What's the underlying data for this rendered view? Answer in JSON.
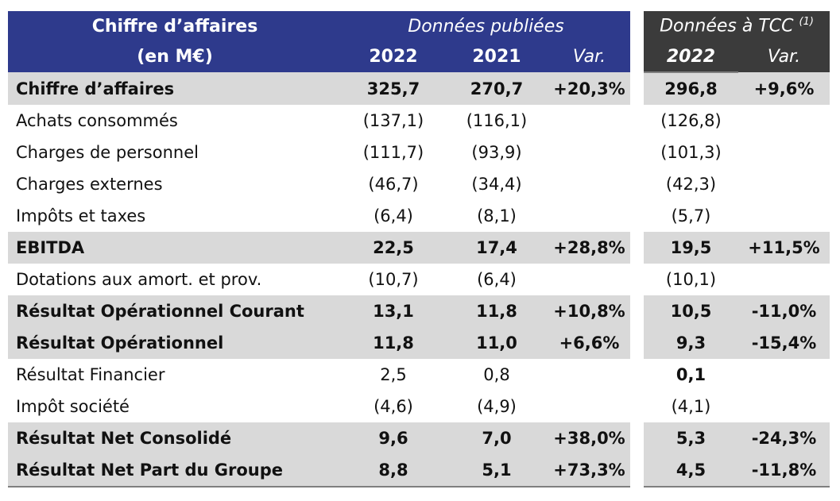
{
  "header": {
    "title_line1": "Chiffre d’affaires",
    "title_line2": "(en M€)",
    "published_group": "Données publiées",
    "tcc_group": "Données à TCC",
    "tcc_note": "(1)",
    "col_2022": "2022",
    "col_2021": "2021",
    "col_var": "Var.",
    "col_tcc_2022": "2022",
    "col_tcc_var": "Var."
  },
  "rows": [
    {
      "label": "Chiffre d’affaires",
      "y2022": "325,7",
      "y2021": "270,7",
      "var": "+20,3%",
      "tcc2022": "296,8",
      "tccvar": "+9,6%"
    },
    {
      "label": "Achats consommés",
      "y2022": "(137,1)",
      "y2021": "(116,1)",
      "var": "",
      "tcc2022": "(126,8)",
      "tccvar": ""
    },
    {
      "label": "Charges de personnel",
      "y2022": "(111,7)",
      "y2021": "(93,9)",
      "var": "",
      "tcc2022": "(101,3)",
      "tccvar": ""
    },
    {
      "label": "Charges externes",
      "y2022": "(46,7)",
      "y2021": "(34,4)",
      "var": "",
      "tcc2022": "(42,3)",
      "tccvar": ""
    },
    {
      "label": "Impôts et taxes",
      "y2022": "(6,4)",
      "y2021": "(8,1)",
      "var": "",
      "tcc2022": "(5,7)",
      "tccvar": ""
    },
    {
      "label": "EBITDA",
      "y2022": "22,5",
      "y2021": "17,4",
      "var": "+28,8%",
      "tcc2022": "19,5",
      "tccvar": "+11,5%"
    },
    {
      "label": "Dotations aux amort. et prov.",
      "y2022": "(10,7)",
      "y2021": "(6,4)",
      "var": "",
      "tcc2022": "(10,1)",
      "tccvar": ""
    },
    {
      "label": "Résultat Opérationnel Courant",
      "y2022": "13,1",
      "y2021": "11,8",
      "var": "+10,8%",
      "tcc2022": "10,5",
      "tccvar": "-11,0%"
    },
    {
      "label": "Résultat Opérationnel",
      "y2022": "11,8",
      "y2021": "11,0",
      "var": "+6,6%",
      "tcc2022": "9,3",
      "tccvar": "-15,4%"
    },
    {
      "label": "Résultat Financier",
      "y2022": "2,5",
      "y2021": "0,8",
      "var": "",
      "tcc2022": "0,1",
      "tccvar": ""
    },
    {
      "label": "Impôt société",
      "y2022": "(4,6)",
      "y2021": "(4,9)",
      "var": "",
      "tcc2022": "(4,1)",
      "tccvar": ""
    },
    {
      "label": "Résultat Net Consolidé",
      "y2022": "9,6",
      "y2021": "7,0",
      "var": "+38,0%",
      "tcc2022": "5,3",
      "tccvar": "-24,3%"
    },
    {
      "label": "Résultat Net Part du Groupe",
      "y2022": "8,8",
      "y2021": "5,1",
      "var": "+73,3%",
      "tcc2022": "4,5",
      "tccvar": "-11,8%"
    }
  ],
  "colors": {
    "header_blue": "#2e3a8c",
    "header_dark": "#3b3b3b",
    "highlight_row": "#d9d9d9"
  }
}
